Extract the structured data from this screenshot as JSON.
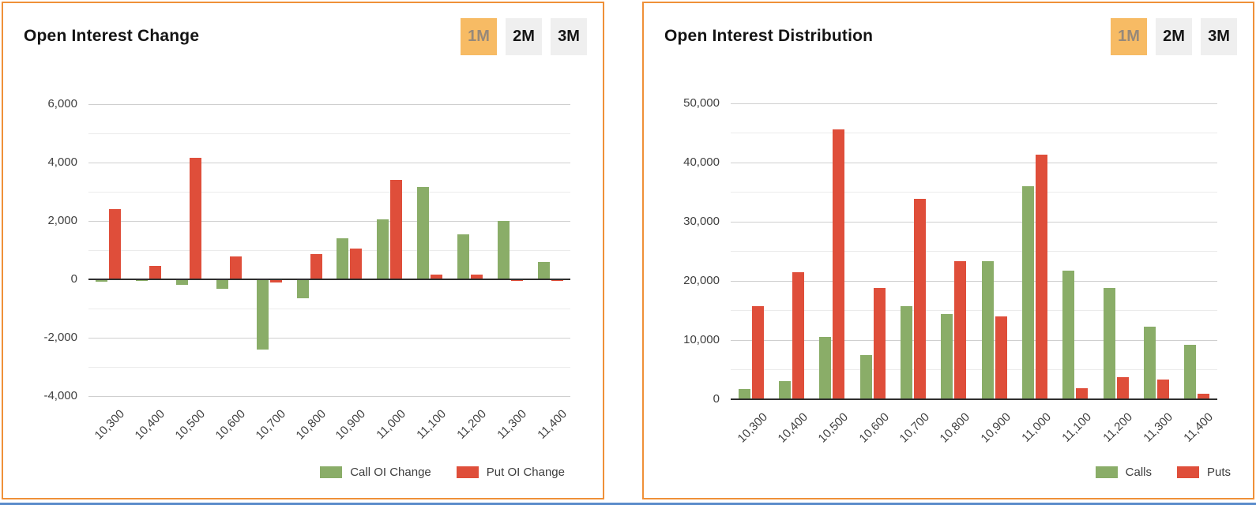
{
  "colors": {
    "panel_border_orange": "#ef9038",
    "active_button_bg": "#f7bb64",
    "inactive_button_bg": "#efefef",
    "call_green": "#8aad68",
    "put_red": "#df4e3a",
    "bottom_strip_blue": "#5b8ccb"
  },
  "panels": [
    {
      "title": "Open Interest Change",
      "timeframes": [
        {
          "label": "1M",
          "active": true
        },
        {
          "label": "2M",
          "active": false
        },
        {
          "label": "3M",
          "active": false
        }
      ]
    },
    {
      "title": "Open Interest Distribution",
      "timeframes": [
        {
          "label": "1M",
          "active": true
        },
        {
          "label": "2M",
          "active": false
        },
        {
          "label": "3M",
          "active": false
        }
      ]
    }
  ],
  "chart_data": [
    {
      "type": "bar",
      "title": "Open Interest Change",
      "categories": [
        "10,300",
        "10,400",
        "10,500",
        "10,600",
        "10,700",
        "10,800",
        "10,900",
        "11,000",
        "11,100",
        "11,200",
        "11,300",
        "11,400"
      ],
      "series": [
        {
          "name": "Call OI Change",
          "color": "#8aad68",
          "values": [
            -80,
            -60,
            -200,
            -320,
            -2400,
            -660,
            1400,
            2060,
            3160,
            1540,
            2000,
            600
          ]
        },
        {
          "name": "Put OI Change",
          "color": "#df4e3a",
          "values": [
            2400,
            460,
            4160,
            790,
            -120,
            860,
            1060,
            3400,
            160,
            150,
            -60,
            -50
          ]
        }
      ],
      "ylim": [
        -4000,
        6000
      ],
      "ytick_step": 2000,
      "grid_step": 1000,
      "grid": true,
      "legend_position": "bottom-right"
    },
    {
      "type": "bar",
      "title": "Open Interest Distribution",
      "categories": [
        "10,300",
        "10,400",
        "10,500",
        "10,600",
        "10,700",
        "10,800",
        "10,900",
        "11,000",
        "11,100",
        "11,200",
        "11,300",
        "11,400"
      ],
      "series": [
        {
          "name": "Calls",
          "color": "#8aad68",
          "values": [
            1800,
            3100,
            10500,
            7500,
            15700,
            14400,
            23400,
            36000,
            21700,
            18800,
            12300,
            9200
          ]
        },
        {
          "name": "Puts",
          "color": "#df4e3a",
          "values": [
            15800,
            21500,
            45600,
            18800,
            33900,
            23300,
            14000,
            41300,
            1900,
            3700,
            3400,
            900
          ]
        }
      ],
      "ylim": [
        0,
        50000
      ],
      "ytick_step": 10000,
      "grid_step": 5000,
      "grid": true,
      "legend_position": "bottom-right"
    }
  ]
}
